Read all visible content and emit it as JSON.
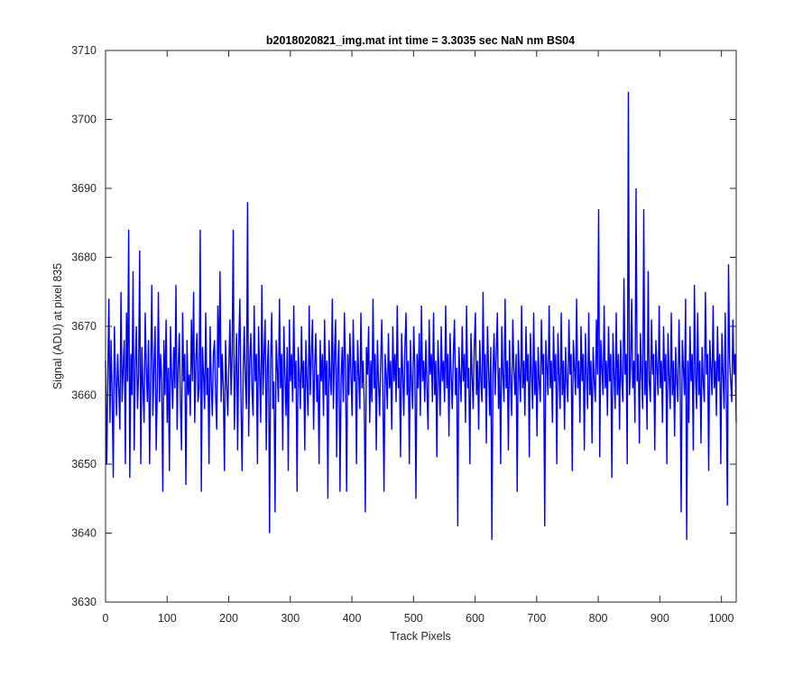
{
  "chart_data": {
    "type": "line",
    "title": "b2018020821_img.mat int time = 3.3035 sec  NaN nm BS04",
    "xlabel": "Track Pixels",
    "ylabel": "Signal (ADU) at pixel 835",
    "xlim": [
      0,
      1024
    ],
    "ylim": [
      3630,
      3710
    ],
    "xticks": [
      0,
      100,
      200,
      300,
      400,
      500,
      600,
      700,
      800,
      900,
      1000
    ],
    "yticks": [
      3630,
      3640,
      3650,
      3660,
      3670,
      3680,
      3690,
      3700,
      3710
    ],
    "grid": false,
    "series": [
      {
        "color": "#0000ff",
        "values": [
          3665,
          3650,
          3662,
          3674,
          3656,
          3668,
          3660,
          3648,
          3670,
          3663,
          3657,
          3666,
          3661,
          3655,
          3675,
          3659,
          3664,
          3668,
          3650,
          3672,
          3662,
          3684,
          3648,
          3666,
          3660,
          3678,
          3652,
          3664,
          3670,
          3658,
          3663,
          3681,
          3650,
          3667,
          3661,
          3656,
          3672,
          3664,
          3659,
          3668,
          3650,
          3663,
          3676,
          3657,
          3664,
          3670,
          3652,
          3661,
          3675,
          3659,
          3666,
          3662,
          3646,
          3668,
          3660,
          3671,
          3656,
          3664,
          3649,
          3670,
          3663,
          3658,
          3667,
          3661,
          3676,
          3655,
          3664,
          3669,
          3659,
          3652,
          3672,
          3662,
          3666,
          3647,
          3668,
          3660,
          3663,
          3657,
          3671,
          3662,
          3675,
          3656,
          3665,
          3669,
          3659,
          3661,
          3684,
          3646,
          3667,
          3663,
          3658,
          3672,
          3660,
          3664,
          3650,
          3670,
          3662,
          3657,
          3666,
          3668,
          3660,
          3655,
          3673,
          3664,
          3678,
          3659,
          3666,
          3661,
          3649,
          3668,
          3662,
          3657,
          3664,
          3671,
          3660,
          3666,
          3684,
          3655,
          3663,
          3669,
          3652,
          3667,
          3674,
          3660,
          3649,
          3663,
          3670,
          3662,
          3658,
          3688,
          3654,
          3665,
          3669,
          3661,
          3657,
          3673,
          3662,
          3666,
          3650,
          3670,
          3663,
          3656,
          3676,
          3660,
          3666,
          3671,
          3652,
          3664,
          3668,
          3640,
          3665,
          3672,
          3658,
          3662,
          3643,
          3668,
          3664,
          3659,
          3674,
          3661,
          3666,
          3652,
          3670,
          3663,
          3657,
          3667,
          3649,
          3671,
          3662,
          3666,
          3659,
          3673,
          3661,
          3665,
          3646,
          3667,
          3663,
          3658,
          3670,
          3661,
          3665,
          3652,
          3668,
          3662,
          3657,
          3673,
          3660,
          3666,
          3671,
          3655,
          3664,
          3669,
          3659,
          3663,
          3650,
          3668,
          3662,
          3666,
          3657,
          3671,
          3660,
          3665,
          3645,
          3668,
          3663,
          3660,
          3674,
          3658,
          3666,
          3671,
          3651,
          3664,
          3668,
          3646,
          3662,
          3667,
          3659,
          3672,
          3664,
          3646,
          3666,
          3660,
          3669,
          3663,
          3657,
          3671,
          3662,
          3665,
          3650,
          3668,
          3663,
          3658,
          3672,
          3661,
          3665,
          3659,
          3643,
          3667,
          3663,
          3670,
          3656,
          3665,
          3659,
          3674,
          3661,
          3666,
          3652,
          3668,
          3662,
          3657,
          3665,
          3671,
          3660,
          3646,
          3666,
          3663,
          3658,
          3669,
          3661,
          3665,
          3655,
          3670,
          3662,
          3666,
          3659,
          3673,
          3661,
          3664,
          3651,
          3669,
          3663,
          3657,
          3667,
          3672,
          3660,
          3665,
          3650,
          3668,
          3662,
          3658,
          3670,
          3664,
          3645,
          3666,
          3661,
          3669,
          3657,
          3673,
          3662,
          3665,
          3659,
          3668,
          3661,
          3655,
          3671,
          3663,
          3666,
          3659,
          3672,
          3660,
          3665,
          3651,
          3668,
          3663,
          3657,
          3670,
          3662,
          3665,
          3659,
          3673,
          3661,
          3666,
          3654,
          3669,
          3663,
          3658,
          3666,
          3671,
          3660,
          3664,
          3641,
          3667,
          3663,
          3659,
          3670,
          3662,
          3666,
          3656,
          3673,
          3661,
          3664,
          3650,
          3669,
          3663,
          3658,
          3667,
          3672,
          3660,
          3665,
          3655,
          3668,
          3662,
          3659,
          3675,
          3661,
          3666,
          3653,
          3670,
          3664,
          3657,
          3667,
          3639,
          3663,
          3669,
          3660,
          3666,
          3672,
          3658,
          3664,
          3650,
          3670,
          3663,
          3659,
          3674,
          3661,
          3665,
          3652,
          3668,
          3662,
          3657,
          3671,
          3664,
          3660,
          3666,
          3646,
          3668,
          3663,
          3659,
          3673,
          3661,
          3665,
          3657,
          3670,
          3662,
          3666,
          3651,
          3669,
          3663,
          3658,
          3672,
          3660,
          3665,
          3654,
          3667,
          3662,
          3659,
          3671,
          3663,
          3666,
          3641,
          3668,
          3664,
          3660,
          3673,
          3661,
          3665,
          3656,
          3670,
          3662,
          3666,
          3650,
          3669,
          3663,
          3658,
          3672,
          3660,
          3665,
          3655,
          3667,
          3662,
          3659,
          3671,
          3663,
          3666,
          3649,
          3668,
          3664,
          3660,
          3674,
          3661,
          3665,
          3656,
          3670,
          3662,
          3666,
          3652,
          3669,
          3663,
          3658,
          3672,
          3660,
          3665,
          3653,
          3667,
          3662,
          3659,
          3671,
          3663,
          3687,
          3651,
          3668,
          3664,
          3660,
          3673,
          3661,
          3665,
          3657,
          3670,
          3662,
          3666,
          3648,
          3669,
          3663,
          3658,
          3672,
          3660,
          3666,
          3655,
          3668,
          3662,
          3659,
          3677,
          3663,
          3666,
          3650,
          3704,
          3660,
          3664,
          3674,
          3661,
          3665,
          3656,
          3690,
          3662,
          3666,
          3653,
          3669,
          3663,
          3658,
          3687,
          3660,
          3665,
          3655,
          3678,
          3662,
          3659,
          3671,
          3663,
          3666,
          3652,
          3668,
          3664,
          3660,
          3673,
          3661,
          3665,
          3656,
          3670,
          3662,
          3666,
          3650,
          3669,
          3663,
          3658,
          3672,
          3660,
          3665,
          3654,
          3667,
          3662,
          3659,
          3671,
          3663,
          3643,
          3668,
          3664,
          3660,
          3674,
          3639,
          3665,
          3656,
          3670,
          3662,
          3666,
          3652,
          3676,
          3663,
          3658,
          3672,
          3660,
          3665,
          3653,
          3667,
          3662,
          3659,
          3675,
          3663,
          3666,
          3649,
          3668,
          3664,
          3660,
          3673,
          3661,
          3665,
          3657,
          3670,
          3662,
          3666,
          3650,
          3669,
          3663,
          3658,
          3672,
          3660,
          3644,
          3679,
          3665,
          3662,
          3659,
          3671,
          3663,
          3666,
          3656
        ]
      }
    ]
  }
}
